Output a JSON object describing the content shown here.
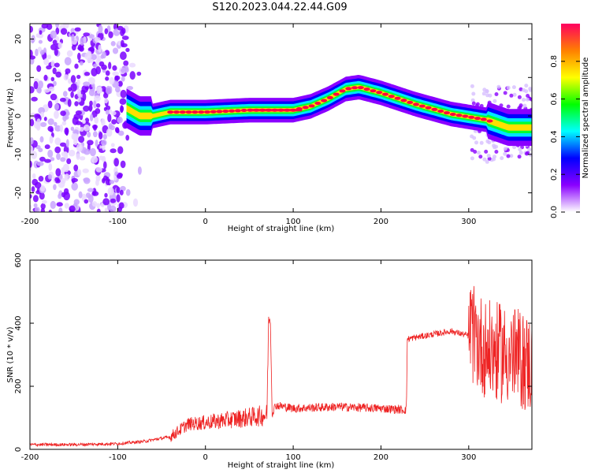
{
  "title": "S120.2023.044.22.44.G09",
  "chart_data": [
    {
      "type": "heatmap",
      "title": "S120.2023.044.22.44.G09",
      "xlabel": "Height of straight line (km)",
      "ylabel": "Frequency (Hz)",
      "xlim": [
        -200,
        372
      ],
      "ylim": [
        -25,
        24
      ],
      "xticks": [
        -200,
        -100,
        0,
        100,
        200,
        300
      ],
      "yticks": [
        -20,
        -10,
        0,
        10,
        20
      ],
      "colorbar": {
        "label": "Normalized spectral amplitude",
        "range": [
          0,
          1
        ],
        "ticks": [
          "0.0",
          "0.2",
          "0.4",
          "0.6",
          "0.8"
        ],
        "colors": [
          "#ffffff",
          "#8a00ff",
          "#0000ff",
          "#00ffff",
          "#00ff00",
          "#ffff00",
          "#ff8000",
          "#ff0060"
        ]
      },
      "ridge": {
        "x": [
          -90,
          -75,
          -60,
          -40,
          0,
          50,
          100,
          120,
          140,
          160,
          175,
          200,
          240,
          280,
          320,
          345,
          372
        ],
        "y": [
          2,
          0,
          0,
          1,
          1,
          1.5,
          1.5,
          2.5,
          4.5,
          7,
          7.5,
          6,
          3,
          0.5,
          -1,
          -3,
          -3
        ]
      }
    },
    {
      "type": "line",
      "xlabel": "Height of straight line (km)",
      "ylabel": "SNR (10 * v/v)",
      "xlim": [
        -200,
        372
      ],
      "ylim": [
        0,
        600
      ],
      "xticks": [
        -200,
        -100,
        0,
        100,
        200,
        300
      ],
      "yticks": [
        0,
        200,
        400,
        600
      ],
      "color": "#ee2222",
      "x": [
        -200,
        -150,
        -100,
        -70,
        -40,
        -30,
        -20,
        0,
        30,
        60,
        70,
        72,
        74,
        76,
        80,
        100,
        150,
        200,
        229,
        230,
        250,
        280,
        300,
        320,
        350,
        372
      ],
      "y": [
        15,
        15,
        18,
        25,
        40,
        60,
        80,
        85,
        95,
        105,
        110,
        410,
        410,
        115,
        140,
        130,
        135,
        130,
        125,
        350,
        360,
        375,
        360,
        300,
        280,
        250
      ]
    }
  ]
}
